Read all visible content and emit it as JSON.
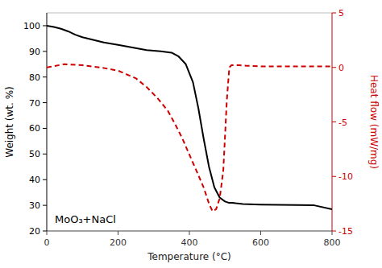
{
  "chart_data": {
    "type": "line",
    "xlabel": "Temperature (°C)",
    "ylabel": "Weight (wt. %)",
    "y2label": "Heat flow (mW/mg)",
    "annotation": "MoO₃+NaCl",
    "xlim": [
      0,
      800
    ],
    "xticks": [
      0,
      200,
      400,
      600,
      800
    ],
    "ylim": [
      20,
      105
    ],
    "yticks": [
      20,
      30,
      40,
      50,
      60,
      70,
      80,
      90,
      100
    ],
    "y2lim": [
      -15,
      5
    ],
    "y2ticks": [
      -15,
      -10,
      -5,
      0,
      5
    ],
    "grid": false,
    "series": [
      {
        "color": "#000000",
        "line_style": "solid",
        "x": [
          0,
          20,
          40,
          60,
          80,
          100,
          130,
          160,
          200,
          240,
          280,
          320,
          350,
          370,
          390,
          410,
          425,
          440,
          455,
          470,
          485,
          500,
          510,
          520,
          530,
          550,
          600,
          650,
          700,
          750,
          800
        ],
        "values": [
          100,
          99.5,
          98.8,
          97.8,
          96.5,
          95.5,
          94.5,
          93.5,
          92.5,
          91.5,
          90.5,
          90.0,
          89.5,
          88.0,
          85.0,
          78.0,
          68.0,
          56.0,
          45.0,
          37.0,
          33.0,
          31.5,
          31.0,
          31.0,
          30.8,
          30.5,
          30.3,
          30.2,
          30.1,
          30.0,
          28.5
        ]
      },
      {
        "color": "#cc0000",
        "line_style": "dashed",
        "axis": "y2",
        "x": [
          0,
          50,
          100,
          150,
          200,
          250,
          280,
          310,
          340,
          360,
          380,
          400,
          420,
          440,
          455,
          465,
          475,
          485,
          495,
          505,
          512,
          518,
          525,
          540,
          560,
          600,
          650,
          700,
          750,
          800
        ],
        "values": [
          0.0,
          0.3,
          0.2,
          0.0,
          -0.3,
          -1.0,
          -1.8,
          -2.8,
          -4.0,
          -5.2,
          -6.5,
          -8.0,
          -9.5,
          -11.0,
          -12.5,
          -13.2,
          -13.0,
          -12.0,
          -9.5,
          -3.0,
          0.0,
          0.2,
          0.2,
          0.2,
          0.15,
          0.1,
          0.1,
          0.1,
          0.1,
          0.1
        ]
      }
    ]
  }
}
